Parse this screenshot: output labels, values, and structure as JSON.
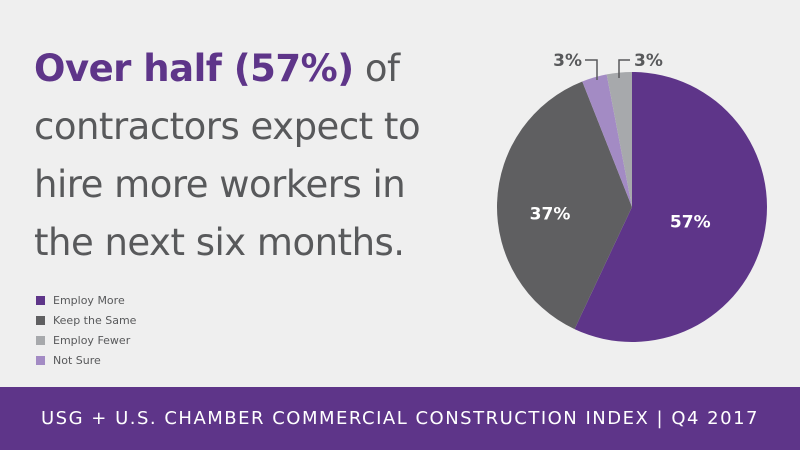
{
  "headline": {
    "highlight": "Over half (57%)",
    "rest_line1": " of",
    "line2": "contractors expect to",
    "line3": "hire more workers in",
    "line4": "the next six months."
  },
  "legend": [
    {
      "label": "Employ More",
      "color": "#5e3589"
    },
    {
      "label": "Keep the Same",
      "color": "#5f5f61"
    },
    {
      "label": "Employ Fewer",
      "color": "#a7a9ac"
    },
    {
      "label": "Not Sure",
      "color": "#a38bc4"
    }
  ],
  "chart_data": {
    "type": "pie",
    "categories": [
      "Employ More",
      "Keep the Same",
      "Not Sure",
      "Employ Fewer"
    ],
    "values": [
      57,
      37,
      3,
      3
    ],
    "labels": [
      "57%",
      "37%",
      "3%",
      "3%"
    ],
    "colors": [
      "#5e3589",
      "#5f5f61",
      "#a38bc4",
      "#a7a9ac"
    ],
    "legend_position": "bottom-left"
  },
  "footer": {
    "text": "USG + U.S. CHAMBER COMMERCIAL CONSTRUCTION INDEX  |  Q4 2017"
  }
}
